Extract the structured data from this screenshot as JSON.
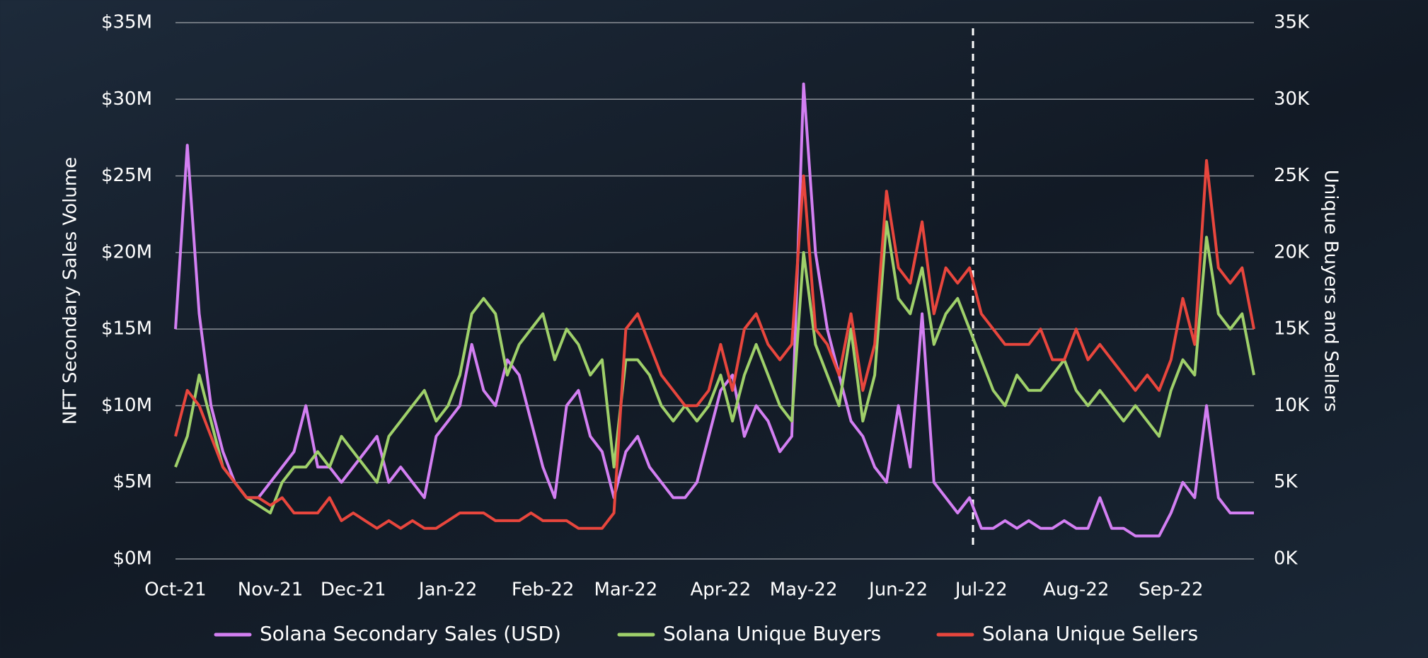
{
  "chart_data": {
    "type": "line",
    "y_label": "NFT Secondary Sales Volume",
    "y2_label": "Unique Buyers and Sellers",
    "categories": [
      "Oct-21",
      null,
      null,
      null,
      null,
      null,
      null,
      null,
      "Nov-21",
      null,
      null,
      null,
      null,
      null,
      null,
      "Dec-21",
      null,
      null,
      null,
      null,
      null,
      null,
      null,
      "Jan-22",
      null,
      null,
      null,
      null,
      null,
      null,
      null,
      "Feb-22",
      null,
      null,
      null,
      null,
      null,
      null,
      "Mar-22",
      null,
      null,
      null,
      null,
      null,
      null,
      null,
      "Apr-22",
      null,
      null,
      null,
      null,
      null,
      null,
      "May-22",
      null,
      null,
      null,
      null,
      null,
      null,
      null,
      "Jun-22",
      null,
      null,
      null,
      null,
      null,
      null,
      "Jul-22",
      null,
      null,
      null,
      null,
      null,
      null,
      null,
      "Aug-22",
      null,
      null,
      null,
      null,
      null,
      null,
      null,
      "Sep-22",
      null,
      null,
      null,
      null,
      null,
      null,
      null
    ],
    "series": [
      {
        "name": "Solana Secondary Sales (USD)",
        "color": "#d37ff2",
        "axis": "y",
        "values": [
          15,
          27,
          16,
          10,
          7,
          5,
          4,
          4,
          5,
          6,
          7,
          10,
          6,
          6,
          5,
          6,
          7,
          8,
          5,
          6,
          5,
          4,
          8,
          9,
          10,
          14,
          11,
          10,
          13,
          12,
          9,
          6,
          4,
          10,
          11,
          8,
          7,
          4,
          7,
          8,
          6,
          5,
          4,
          4,
          5,
          8,
          11,
          12,
          8,
          10,
          9,
          7,
          8,
          31,
          20,
          15,
          12,
          9,
          8,
          6,
          5,
          10,
          6,
          16,
          5,
          4,
          3,
          4,
          2,
          2,
          2.5,
          2,
          2.5,
          2,
          2,
          2.5,
          2,
          2,
          4,
          2,
          2,
          1.5,
          1.5,
          1.5,
          3,
          5,
          4,
          10,
          4,
          3,
          3,
          3
        ]
      },
      {
        "name": "Solana Unique Buyers",
        "color": "#9fd06a",
        "axis": "y2",
        "values": [
          6,
          8,
          12,
          9,
          6,
          5,
          4,
          3.5,
          3,
          5,
          6,
          6,
          7,
          6,
          8,
          7,
          6,
          5,
          8,
          9,
          10,
          11,
          9,
          10,
          12,
          16,
          17,
          16,
          12,
          14,
          15,
          16,
          13,
          15,
          14,
          12,
          13,
          6,
          13,
          13,
          12,
          10,
          9,
          10,
          9,
          10,
          12,
          9,
          12,
          14,
          12,
          10,
          9,
          20,
          14,
          12,
          10,
          15,
          9,
          12,
          22,
          17,
          16,
          19,
          14,
          16,
          17,
          15,
          13,
          11,
          10,
          12,
          11,
          11,
          12,
          13,
          11,
          10,
          11,
          10,
          9,
          10,
          9,
          8,
          11,
          13,
          12,
          21,
          16,
          15,
          16,
          12
        ]
      },
      {
        "name": "Solana Unique Sellers",
        "color": "#e8463d",
        "axis": "y2",
        "values": [
          8,
          11,
          10,
          8,
          6,
          5,
          4,
          4,
          3.5,
          4,
          3,
          3,
          3,
          4,
          2.5,
          3,
          2.5,
          2,
          2.5,
          2,
          2.5,
          2,
          2,
          2.5,
          3,
          3,
          3,
          2.5,
          2.5,
          2.5,
          3,
          2.5,
          2.5,
          2.5,
          2,
          2,
          2,
          3,
          15,
          16,
          14,
          12,
          11,
          10,
          10,
          11,
          14,
          11,
          15,
          16,
          14,
          13,
          14,
          25,
          15,
          14,
          12,
          16,
          11,
          14,
          24,
          19,
          18,
          22,
          16,
          19,
          18,
          19,
          16,
          15,
          14,
          14,
          14,
          15,
          13,
          13,
          15,
          13,
          14,
          13,
          12,
          11,
          12,
          11,
          13,
          17,
          14,
          26,
          19,
          18,
          19,
          15
        ]
      }
    ],
    "ylim": [
      0,
      35
    ],
    "yticks": [
      {
        "value": 0,
        "label": "$0M"
      },
      {
        "value": 5,
        "label": "$5M"
      },
      {
        "value": 10,
        "label": "$10M"
      },
      {
        "value": 15,
        "label": "$15M"
      },
      {
        "value": 20,
        "label": "$20M"
      },
      {
        "value": 25,
        "label": "$25M"
      },
      {
        "value": 30,
        "label": "$30M"
      },
      {
        "value": 35,
        "label": "$35M"
      }
    ],
    "y2lim": [
      0,
      35
    ],
    "y2ticks": [
      {
        "value": 0,
        "label": "0K"
      },
      {
        "value": 5,
        "label": "5K"
      },
      {
        "value": 10,
        "label": "10K"
      },
      {
        "value": 15,
        "label": "15K"
      },
      {
        "value": 20,
        "label": "20K"
      },
      {
        "value": 25,
        "label": "25K"
      },
      {
        "value": 30,
        "label": "30K"
      },
      {
        "value": 35,
        "label": "35K"
      }
    ],
    "grid": true
  }
}
